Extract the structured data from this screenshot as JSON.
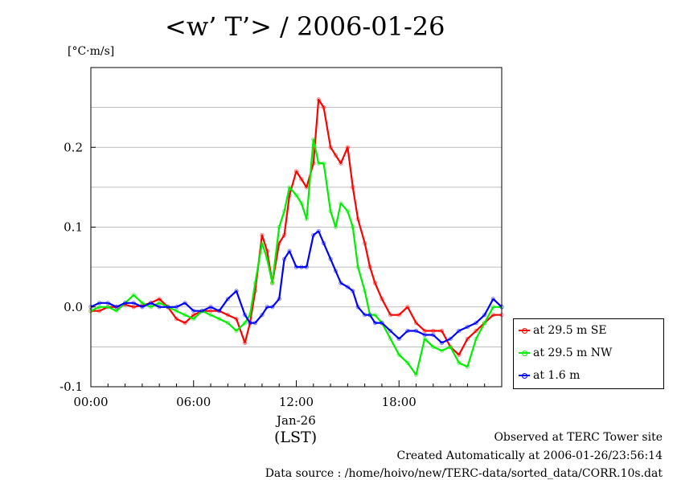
{
  "header": {
    "title": "<w’ T’> / 2006-01-26",
    "unit": "[°C·m/s]"
  },
  "footer": {
    "line1": "Observed at TERC Tower site",
    "line2": "Created Automatically at 2006-01-26/23:56:14",
    "line3": "Data source : /home/hoivo/new/TERC-data/sorted_data/CORR.10s.dat"
  },
  "axis_labels": {
    "date": "Jan-26",
    "timezone": "(LST)"
  },
  "colors": {
    "se": "#ff0000",
    "nw": "#00ee00",
    "low": "#0000ff",
    "grid": "#aaaaaa"
  },
  "chart_data": {
    "type": "line",
    "title": "<w’ T’> / 2006-01-26",
    "ylabel": "[°C·m/s]",
    "xlabel": "(LST)",
    "x_unit": "hours (LST)",
    "xlim": [
      0,
      24
    ],
    "ylim": [
      -0.1,
      0.3
    ],
    "x_ticks": [
      0,
      6,
      12,
      18
    ],
    "x_tick_labels": [
      "00:00",
      "06:00",
      "12:00",
      "18:00"
    ],
    "y_ticks": [
      -0.1,
      0.0,
      0.1,
      0.2
    ],
    "y_tick_labels": [
      "-0.1",
      "0.0",
      "0.1",
      "0.2"
    ],
    "grid": true,
    "legend_position": "right, outside plot",
    "series": [
      {
        "name": "at 29.5 m SE",
        "color": "#ff0000",
        "x": [
          0.0,
          0.5,
          1.0,
          1.5,
          2.0,
          2.5,
          3.0,
          3.5,
          4.0,
          4.5,
          5.0,
          5.5,
          6.0,
          6.5,
          7.0,
          7.5,
          8.0,
          8.5,
          9.0,
          9.3,
          9.6,
          10.0,
          10.3,
          10.6,
          11.0,
          11.3,
          11.6,
          12.0,
          12.3,
          12.6,
          13.0,
          13.3,
          13.6,
          14.0,
          14.3,
          14.6,
          15.0,
          15.3,
          15.6,
          16.0,
          16.3,
          16.6,
          17.0,
          17.5,
          18.0,
          18.5,
          19.0,
          19.5,
          20.0,
          20.5,
          21.0,
          21.5,
          22.0,
          22.5,
          23.0,
          23.5,
          24.0
        ],
        "y": [
          -0.005,
          -0.005,
          0.0,
          0.0,
          0.003,
          0.0,
          0.002,
          0.005,
          0.01,
          0.0,
          -0.015,
          -0.02,
          -0.01,
          -0.005,
          -0.005,
          -0.005,
          -0.01,
          -0.015,
          -0.045,
          -0.02,
          0.02,
          0.09,
          0.07,
          0.03,
          0.08,
          0.09,
          0.14,
          0.17,
          0.16,
          0.15,
          0.18,
          0.26,
          0.25,
          0.2,
          0.19,
          0.18,
          0.2,
          0.15,
          0.11,
          0.08,
          0.05,
          0.03,
          0.01,
          -0.01,
          -0.01,
          0.0,
          -0.02,
          -0.03,
          -0.03,
          -0.03,
          -0.05,
          -0.06,
          -0.04,
          -0.03,
          -0.02,
          -0.01,
          -0.01
        ]
      },
      {
        "name": "at 29.5 m NW",
        "color": "#00ee00",
        "x": [
          0.0,
          0.5,
          1.0,
          1.5,
          2.0,
          2.5,
          3.0,
          3.5,
          4.0,
          4.5,
          5.0,
          5.5,
          6.0,
          6.5,
          7.0,
          7.5,
          8.0,
          8.5,
          9.0,
          9.3,
          9.6,
          10.0,
          10.3,
          10.6,
          11.0,
          11.3,
          11.6,
          12.0,
          12.3,
          12.6,
          13.0,
          13.3,
          13.6,
          14.0,
          14.3,
          14.6,
          15.0,
          15.3,
          15.6,
          16.0,
          16.3,
          16.6,
          17.0,
          17.5,
          18.0,
          18.5,
          19.0,
          19.5,
          20.0,
          20.5,
          21.0,
          21.5,
          22.0,
          22.5,
          23.0,
          23.5,
          24.0
        ],
        "y": [
          -0.005,
          0.0,
          0.0,
          -0.005,
          0.005,
          0.015,
          0.005,
          0.0,
          0.005,
          0.0,
          -0.005,
          -0.01,
          -0.015,
          -0.005,
          -0.01,
          -0.015,
          -0.02,
          -0.03,
          -0.02,
          -0.01,
          0.03,
          0.08,
          0.06,
          0.03,
          0.1,
          0.12,
          0.15,
          0.14,
          0.13,
          0.11,
          0.21,
          0.18,
          0.18,
          0.12,
          0.1,
          0.13,
          0.12,
          0.1,
          0.05,
          0.02,
          -0.01,
          -0.01,
          -0.02,
          -0.04,
          -0.06,
          -0.07,
          -0.085,
          -0.04,
          -0.05,
          -0.055,
          -0.05,
          -0.07,
          -0.075,
          -0.04,
          -0.02,
          0.0,
          0.0
        ]
      },
      {
        "name": "at 1.6 m",
        "color": "#0000ff",
        "x": [
          0.0,
          0.5,
          1.0,
          1.5,
          2.0,
          2.5,
          3.0,
          3.5,
          4.0,
          4.5,
          5.0,
          5.5,
          6.0,
          6.5,
          7.0,
          7.5,
          8.0,
          8.5,
          9.0,
          9.3,
          9.6,
          10.0,
          10.3,
          10.6,
          11.0,
          11.3,
          11.6,
          12.0,
          12.3,
          12.6,
          13.0,
          13.3,
          13.6,
          14.0,
          14.3,
          14.6,
          15.0,
          15.3,
          15.6,
          16.0,
          16.3,
          16.6,
          17.0,
          17.5,
          18.0,
          18.5,
          19.0,
          19.5,
          20.0,
          20.5,
          21.0,
          21.5,
          22.0,
          22.5,
          23.0,
          23.5,
          24.0
        ],
        "y": [
          0.0,
          0.005,
          0.005,
          0.0,
          0.005,
          0.005,
          0.0,
          0.005,
          0.0,
          0.0,
          0.0,
          0.005,
          -0.005,
          -0.005,
          0.0,
          -0.005,
          0.01,
          0.02,
          -0.01,
          -0.02,
          -0.02,
          -0.01,
          0.0,
          0.0,
          0.01,
          0.06,
          0.07,
          0.05,
          0.05,
          0.05,
          0.09,
          0.095,
          0.08,
          0.06,
          0.045,
          0.03,
          0.025,
          0.02,
          0.0,
          -0.01,
          -0.01,
          -0.02,
          -0.02,
          -0.03,
          -0.04,
          -0.03,
          -0.03,
          -0.035,
          -0.035,
          -0.045,
          -0.04,
          -0.03,
          -0.025,
          -0.02,
          -0.01,
          0.01,
          0.0
        ]
      }
    ]
  }
}
